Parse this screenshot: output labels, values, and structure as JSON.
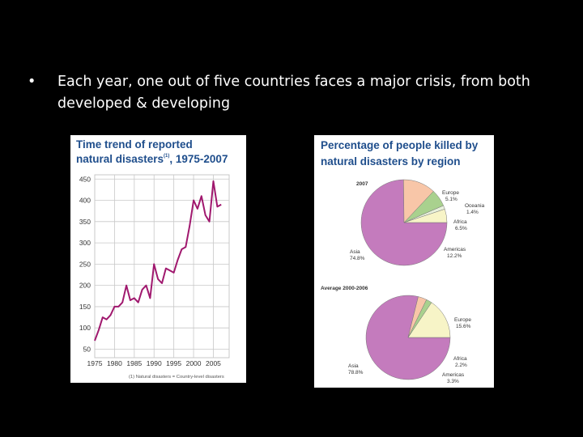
{
  "slide": {
    "bullet_symbol": "•",
    "bullet_text": "Each year, one out of five countries faces a major crisis, from both developed & developing"
  },
  "chart_data": [
    {
      "type": "line",
      "title_line1": "Time trend of reported",
      "title_line2": "natural disasters",
      "title_sup": "(1)",
      "title_range": ", 1975-2007",
      "title_color": "#1f4e8c",
      "line_color": "#a0186e",
      "x": [
        1975,
        1976,
        1977,
        1978,
        1979,
        1980,
        1981,
        1982,
        1983,
        1984,
        1985,
        1986,
        1987,
        1988,
        1989,
        1990,
        1991,
        1992,
        1993,
        1994,
        1995,
        1996,
        1997,
        1998,
        1999,
        2000,
        2001,
        2002,
        2003,
        2004,
        2005,
        2006,
        2007
      ],
      "series": [
        {
          "values": [
            70,
            95,
            125,
            120,
            130,
            150,
            150,
            160,
            200,
            165,
            170,
            160,
            190,
            200,
            170,
            250,
            215,
            205,
            240,
            235,
            230,
            260,
            285,
            290,
            340,
            400,
            380,
            410,
            365,
            350,
            445,
            385,
            390
          ]
        }
      ],
      "xticks": [
        1975,
        1980,
        1985,
        1990,
        1995,
        2000,
        2005
      ],
      "xtick_labels": [
        "1975",
        "1980",
        "1985",
        "1990",
        "1995",
        "2000",
        "2005"
      ],
      "yticks": [
        50,
        100,
        150,
        200,
        250,
        300,
        350,
        400,
        450
      ],
      "xlim": [
        1975,
        2009
      ],
      "ylim": [
        30,
        460
      ],
      "grid": true,
      "footnote": "(1) Natural disasters = Country-level disasters"
    },
    {
      "type": "pie",
      "title_line1": "Percentage of people killed by",
      "title_line2": "natural disasters by region",
      "subtitle": "2007",
      "title_color": "#1f4e8c",
      "categories": [
        "Asia",
        "Europe",
        "Oceania",
        "Africa",
        "Americas"
      ],
      "values": [
        74.8,
        5.1,
        1.4,
        6.5,
        12.2
      ],
      "value_labels": [
        "74.8%",
        "5.1%",
        "1.4%",
        "6.5%",
        "12.2%"
      ],
      "colors": [
        "#c47bbd",
        "#f7f4c7",
        "#e8f1dc",
        "#a9d18e",
        "#f8c6a8"
      ]
    },
    {
      "type": "pie",
      "subtitle": "Average 2000-2006",
      "categories": [
        "Asia",
        "Europe",
        "Africa",
        "Americas"
      ],
      "values": [
        78.8,
        15.6,
        2.2,
        3.3
      ],
      "value_labels": [
        "78.8%",
        "15.6%",
        "2.2%",
        "3.3%"
      ],
      "colors": [
        "#c47bbd",
        "#f7f4c7",
        "#a9d18e",
        "#f8c6a8"
      ]
    }
  ]
}
